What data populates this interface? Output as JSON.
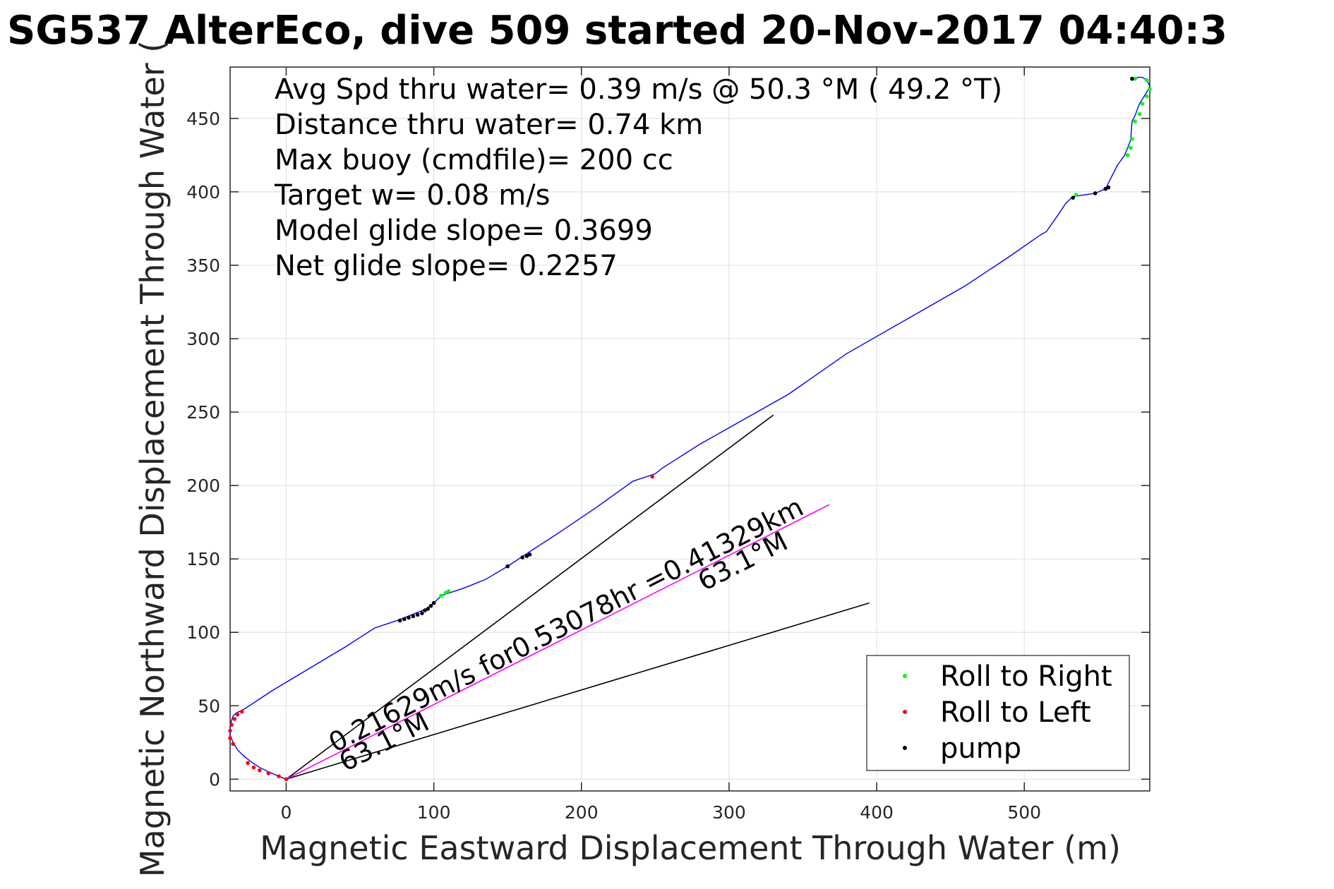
{
  "chart_data": {
    "type": "line",
    "title": "SG537 AlterEco, dive 509 started 20-Nov-2017 04:40:3",
    "xlabel": "Magnetic Eastward Displacement Through Water (m)",
    "ylabel": "Magnetic Northward Displacement Through Water (",
    "xlim": [
      -38,
      585
    ],
    "ylim": [
      -8,
      485
    ],
    "xticks": [
      0,
      100,
      200,
      300,
      400,
      500
    ],
    "yticks": [
      0,
      50,
      100,
      150,
      200,
      250,
      300,
      350,
      400,
      450
    ],
    "grid": true,
    "info_lines": [
      "Avg Spd thru water=  0.39 m/s @  50.3 °M ( 49.2 °T)",
      "Distance thru water=  0.74 km",
      "Max buoy (cmdfile)= 200 cc",
      "Target w= 0.08 m/s",
      "Model glide slope= 0.3699",
      "Net glide slope= 0.2257"
    ],
    "track": {
      "color": "#0000ff",
      "x": [
        0,
        -5,
        -12,
        -18,
        -24,
        -29,
        -33,
        -36,
        -38,
        -38,
        -37,
        -36,
        -34,
        -32,
        -30,
        -28,
        -10,
        10,
        40,
        60,
        75,
        85,
        95,
        100,
        105,
        120,
        135,
        150,
        165,
        185,
        210,
        235,
        250,
        255,
        280,
        310,
        340,
        380,
        420,
        460,
        490,
        510,
        515,
        522,
        528,
        532,
        535,
        548,
        555,
        558,
        563,
        568,
        570,
        572,
        573,
        575,
        578,
        583,
        585,
        583,
        580,
        577,
        575,
        573
      ],
      "y": [
        0,
        2,
        5,
        8,
        12,
        16,
        20,
        25,
        30,
        35,
        40,
        43,
        45,
        46,
        47,
        48,
        60,
        72,
        90,
        103,
        108,
        112,
        116,
        120,
        125,
        130,
        136,
        145,
        155,
        168,
        185,
        203,
        208,
        212,
        228,
        245,
        262,
        290,
        313,
        336,
        356,
        370,
        373,
        383,
        392,
        396,
        397,
        399,
        402,
        408,
        418,
        425,
        430,
        435,
        448,
        452,
        460,
        468,
        472,
        476,
        478,
        478,
        477,
        476
      ]
    },
    "series": [
      {
        "name": "Roll to Right",
        "color": "#00ff00",
        "x": [
          105,
          108,
          110,
          535,
          570,
          572,
          573,
          575,
          578,
          580,
          583,
          585,
          583,
          575
        ],
        "y": [
          125,
          127,
          128,
          398,
          425,
          430,
          436,
          448,
          453,
          460,
          465,
          470,
          476,
          477
        ]
      },
      {
        "name": "Roll to Left",
        "color": "#ff0000",
        "x": [
          -36,
          -38,
          -38,
          -37,
          -35,
          -33,
          -30,
          -26,
          -22,
          -18,
          -12,
          -5,
          0,
          248
        ],
        "y": [
          24,
          28,
          33,
          37,
          41,
          44,
          46,
          11,
          8,
          6,
          4,
          2,
          0,
          206
        ]
      },
      {
        "name": "pump",
        "color": "#000000",
        "x": [
          77,
          80,
          83,
          86,
          89,
          92,
          94,
          96,
          98,
          100,
          150,
          160,
          163,
          165,
          533,
          548,
          555,
          557,
          573
        ],
        "y": [
          108,
          109,
          110,
          111,
          112,
          113,
          115,
          116,
          118,
          120,
          145,
          151,
          152,
          153,
          396,
          399,
          402,
          403,
          477
        ]
      }
    ],
    "reference_lines": [
      {
        "color": "#000000",
        "x": [
          0,
          330
        ],
        "y": [
          0,
          248
        ]
      },
      {
        "color": "#000000",
        "x": [
          0,
          395
        ],
        "y": [
          0,
          120
        ]
      },
      {
        "color": "#ff00ff",
        "x": [
          0,
          368
        ],
        "y": [
          0,
          187
        ]
      }
    ],
    "annotations": [
      {
        "text": "0.21629m/s for0.53078hr =0.41329km",
        "x": 33,
        "y": 18,
        "angle_deg": 27
      },
      {
        "text": "63.1°M",
        "x": 283,
        "y": 128,
        "angle_deg": 27
      },
      {
        "text": "63.1°M",
        "x": 40,
        "y": 5,
        "angle_deg": 27
      }
    ],
    "legend": {
      "placement": "bottom-right",
      "entries": [
        {
          "label": "Roll to Right",
          "color": "#00ff00"
        },
        {
          "label": "Roll to Left",
          "color": "#ff0000"
        },
        {
          "label": "pump",
          "color": "#000000"
        }
      ]
    }
  }
}
